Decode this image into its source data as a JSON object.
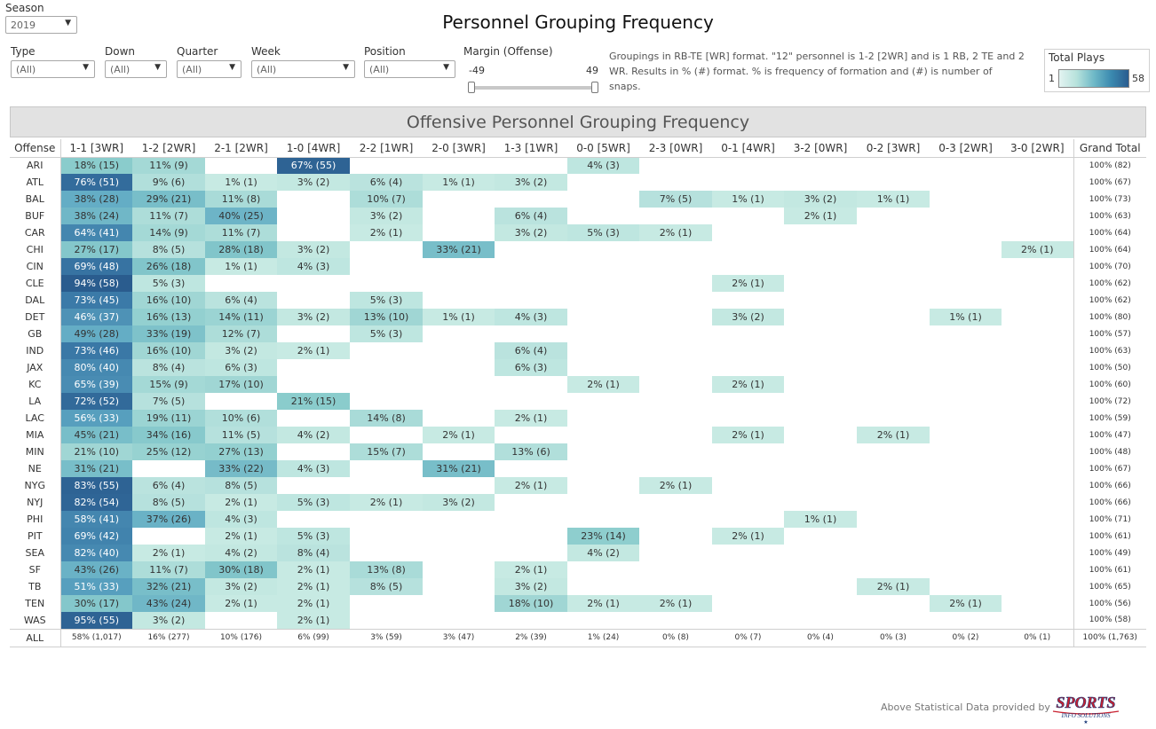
{
  "season": {
    "label": "Season",
    "value": "2019"
  },
  "title": "Personnel Grouping Frequency",
  "filters": [
    {
      "label": "Type",
      "value": "(All)"
    },
    {
      "label": "Down",
      "value": "(All)"
    },
    {
      "label": "Quarter",
      "value": "(All)"
    },
    {
      "label": "Week",
      "value": "(All)"
    },
    {
      "label": "Position",
      "value": "(All)"
    }
  ],
  "margin": {
    "label": "Margin (Offense)",
    "min": "-49",
    "max": "49"
  },
  "note": "Groupings in RB-TE [WR] format. \"12\" personnel is 1-2 [2WR] and is 1 RB, 2 TE and 2 WR.  Results in % (#) format. % is frequency of formation and (#) is number of snaps.",
  "legend": {
    "title": "Total Plays",
    "min": "1",
    "max": "58"
  },
  "section_title": "Offensive Personnel Grouping Frequency",
  "table": {
    "row_header": "Offense",
    "columns": [
      "1-1 [3WR]",
      "1-2 [2WR]",
      "2-1 [2WR]",
      "1-0 [4WR]",
      "2-2 [1WR]",
      "2-0 [3WR]",
      "1-3 [1WR]",
      "0-0 [5WR]",
      "2-3 [0WR]",
      "0-1 [4WR]",
      "3-2 [0WR]",
      "0-2 [3WR]",
      "0-3 [2WR]",
      "3-0 [2WR]"
    ],
    "total_header": "Grand Total",
    "rows": [
      {
        "team": "ARI",
        "cells": [
          "18% (15)",
          "11% (9)",
          "",
          "67% (55)",
          "",
          "",
          "",
          "4% (3)",
          "",
          "",
          "",
          "",
          "",
          ""
        ],
        "total": "100% (82)"
      },
      {
        "team": "ATL",
        "cells": [
          "76% (51)",
          "9% (6)",
          "1% (1)",
          "3% (2)",
          "6% (4)",
          "1% (1)",
          "3% (2)",
          "",
          "",
          "",
          "",
          "",
          "",
          ""
        ],
        "total": "100% (67)"
      },
      {
        "team": "BAL",
        "cells": [
          "38% (28)",
          "29% (21)",
          "11% (8)",
          "",
          "10% (7)",
          "",
          "",
          "",
          "7% (5)",
          "1% (1)",
          "3% (2)",
          "1% (1)",
          "",
          ""
        ],
        "total": "100% (73)"
      },
      {
        "team": "BUF",
        "cells": [
          "38% (24)",
          "11% (7)",
          "40% (25)",
          "",
          "3% (2)",
          "",
          "6% (4)",
          "",
          "",
          "",
          "2% (1)",
          "",
          "",
          ""
        ],
        "total": "100% (63)"
      },
      {
        "team": "CAR",
        "cells": [
          "64% (41)",
          "14% (9)",
          "11% (7)",
          "",
          "2% (1)",
          "",
          "3% (2)",
          "5% (3)",
          "2% (1)",
          "",
          "",
          "",
          "",
          ""
        ],
        "total": "100% (64)"
      },
      {
        "team": "CHI",
        "cells": [
          "27% (17)",
          "8% (5)",
          "28% (18)",
          "3% (2)",
          "",
          "33% (21)",
          "",
          "",
          "",
          "",
          "",
          "",
          "",
          "2% (1)"
        ],
        "total": "100% (64)"
      },
      {
        "team": "CIN",
        "cells": [
          "69% (48)",
          "26% (18)",
          "1% (1)",
          "4% (3)",
          "",
          "",
          "",
          "",
          "",
          "",
          "",
          "",
          "",
          ""
        ],
        "total": "100% (70)"
      },
      {
        "team": "CLE",
        "cells": [
          "94% (58)",
          "5% (3)",
          "",
          "",
          "",
          "",
          "",
          "",
          "",
          "2% (1)",
          "",
          "",
          "",
          ""
        ],
        "total": "100% (62)"
      },
      {
        "team": "DAL",
        "cells": [
          "73% (45)",
          "16% (10)",
          "6% (4)",
          "",
          "5% (3)",
          "",
          "",
          "",
          "",
          "",
          "",
          "",
          "",
          ""
        ],
        "total": "100% (62)"
      },
      {
        "team": "DET",
        "cells": [
          "46% (37)",
          "16% (13)",
          "14% (11)",
          "3% (2)",
          "13% (10)",
          "1% (1)",
          "4% (3)",
          "",
          "",
          "3% (2)",
          "",
          "",
          "1% (1)",
          ""
        ],
        "total": "100% (80)"
      },
      {
        "team": "GB",
        "cells": [
          "49% (28)",
          "33% (19)",
          "12% (7)",
          "",
          "5% (3)",
          "",
          "",
          "",
          "",
          "",
          "",
          "",
          "",
          ""
        ],
        "total": "100% (57)"
      },
      {
        "team": "IND",
        "cells": [
          "73% (46)",
          "16% (10)",
          "3% (2)",
          "2% (1)",
          "",
          "",
          "6% (4)",
          "",
          "",
          "",
          "",
          "",
          "",
          ""
        ],
        "total": "100% (63)"
      },
      {
        "team": "JAX",
        "cells": [
          "80% (40)",
          "8% (4)",
          "6% (3)",
          "",
          "",
          "",
          "6% (3)",
          "",
          "",
          "",
          "",
          "",
          "",
          ""
        ],
        "total": "100% (50)"
      },
      {
        "team": "KC",
        "cells": [
          "65% (39)",
          "15% (9)",
          "17% (10)",
          "",
          "",
          "",
          "",
          "2% (1)",
          "",
          "2% (1)",
          "",
          "",
          "",
          ""
        ],
        "total": "100% (60)"
      },
      {
        "team": "LA",
        "cells": [
          "72% (52)",
          "7% (5)",
          "",
          "21% (15)",
          "",
          "",
          "",
          "",
          "",
          "",
          "",
          "",
          "",
          ""
        ],
        "total": "100% (72)"
      },
      {
        "team": "LAC",
        "cells": [
          "56% (33)",
          "19% (11)",
          "10% (6)",
          "",
          "14% (8)",
          "",
          "2% (1)",
          "",
          "",
          "",
          "",
          "",
          "",
          ""
        ],
        "total": "100% (59)"
      },
      {
        "team": "MIA",
        "cells": [
          "45% (21)",
          "34% (16)",
          "11% (5)",
          "4% (2)",
          "",
          "2% (1)",
          "",
          "",
          "",
          "2% (1)",
          "",
          "2% (1)",
          "",
          ""
        ],
        "total": "100% (47)"
      },
      {
        "team": "MIN",
        "cells": [
          "21% (10)",
          "25% (12)",
          "27% (13)",
          "",
          "15% (7)",
          "",
          "13% (6)",
          "",
          "",
          "",
          "",
          "",
          "",
          ""
        ],
        "total": "100% (48)"
      },
      {
        "team": "NE",
        "cells": [
          "31% (21)",
          "",
          "33% (22)",
          "4% (3)",
          "",
          "31% (21)",
          "",
          "",
          "",
          "",
          "",
          "",
          "",
          ""
        ],
        "total": "100% (67)"
      },
      {
        "team": "NYG",
        "cells": [
          "83% (55)",
          "6% (4)",
          "8% (5)",
          "",
          "",
          "",
          "2% (1)",
          "",
          "2% (1)",
          "",
          "",
          "",
          "",
          ""
        ],
        "total": "100% (66)"
      },
      {
        "team": "NYJ",
        "cells": [
          "82% (54)",
          "8% (5)",
          "2% (1)",
          "5% (3)",
          "2% (1)",
          "3% (2)",
          "",
          "",
          "",
          "",
          "",
          "",
          "",
          ""
        ],
        "total": "100% (66)"
      },
      {
        "team": "PHI",
        "cells": [
          "58% (41)",
          "37% (26)",
          "4% (3)",
          "",
          "",
          "",
          "",
          "",
          "",
          "",
          "1% (1)",
          "",
          "",
          ""
        ],
        "total": "100% (71)"
      },
      {
        "team": "PIT",
        "cells": [
          "69% (42)",
          "",
          "2% (1)",
          "5% (3)",
          "",
          "",
          "",
          "23% (14)",
          "",
          "2% (1)",
          "",
          "",
          "",
          ""
        ],
        "total": "100% (61)"
      },
      {
        "team": "SEA",
        "cells": [
          "82% (40)",
          "2% (1)",
          "4% (2)",
          "8% (4)",
          "",
          "",
          "",
          "4% (2)",
          "",
          "",
          "",
          "",
          "",
          ""
        ],
        "total": "100% (49)"
      },
      {
        "team": "SF",
        "cells": [
          "43% (26)",
          "11% (7)",
          "30% (18)",
          "2% (1)",
          "13% (8)",
          "",
          "2% (1)",
          "",
          "",
          "",
          "",
          "",
          "",
          ""
        ],
        "total": "100% (61)"
      },
      {
        "team": "TB",
        "cells": [
          "51% (33)",
          "32% (21)",
          "3% (2)",
          "2% (1)",
          "8% (5)",
          "",
          "3% (2)",
          "",
          "",
          "",
          "",
          "2% (1)",
          "",
          ""
        ],
        "total": "100% (65)"
      },
      {
        "team": "TEN",
        "cells": [
          "30% (17)",
          "43% (24)",
          "2% (1)",
          "2% (1)",
          "",
          "",
          "18% (10)",
          "2% (1)",
          "2% (1)",
          "",
          "",
          "",
          "2% (1)",
          ""
        ],
        "total": "100% (56)"
      },
      {
        "team": "WAS",
        "cells": [
          "95% (55)",
          "3% (2)",
          "",
          "2% (1)",
          "",
          "",
          "",
          "",
          "",
          "",
          "",
          "",
          "",
          ""
        ],
        "total": "100% (58)"
      }
    ],
    "all_row": {
      "team": "ALL",
      "cells": [
        "58% (1,017)",
        "16% (277)",
        "10% (176)",
        "6% (99)",
        "3% (59)",
        "3% (47)",
        "2% (39)",
        "1% (24)",
        "0% (8)",
        "0% (7)",
        "0% (4)",
        "0% (3)",
        "0% (2)",
        "0% (1)"
      ],
      "total": "100% (1,763)"
    }
  },
  "credit": "Above Statistical Data provided by",
  "logo": {
    "line1": "SPORTS",
    "line2": "INFO SOLUTIONS"
  },
  "colors": {
    "low": "#bfe6df",
    "mid": "#6fbac6",
    "high": "#2b5f8e"
  }
}
